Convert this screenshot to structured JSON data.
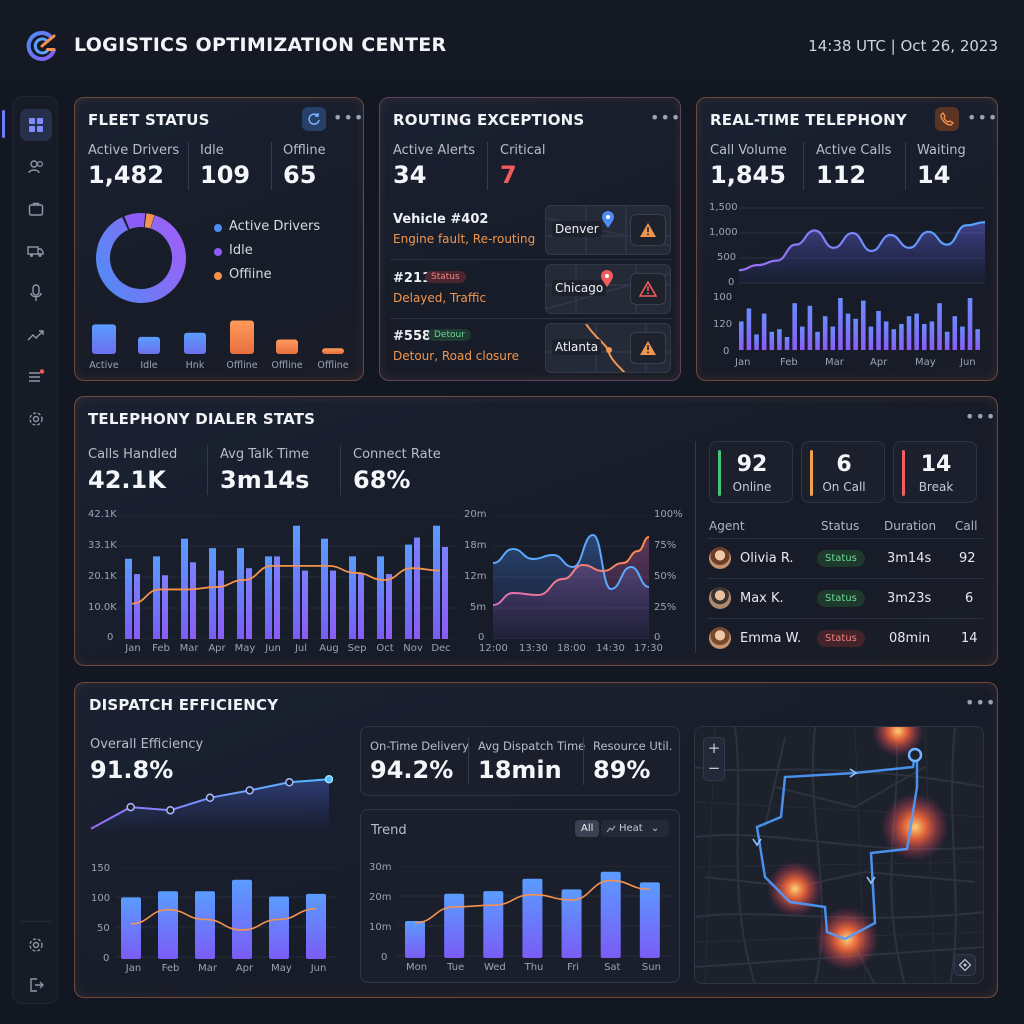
{
  "header": {
    "title": "LOGISTICS OPTIMIZATION CENTER",
    "clock": "14:38 UTC | Oct 26, 2023"
  },
  "sidebar": {
    "items": [
      {
        "icon": "dashboard-icon"
      },
      {
        "icon": "users-icon"
      },
      {
        "icon": "briefcase-icon"
      },
      {
        "icon": "truck-icon"
      },
      {
        "icon": "microphone-icon"
      },
      {
        "icon": "trend-icon"
      },
      {
        "icon": "list-icon"
      },
      {
        "icon": "settings-icon"
      }
    ],
    "bottom": [
      {
        "icon": "gear-icon"
      },
      {
        "icon": "logout-icon"
      }
    ]
  },
  "fleet": {
    "title": "FLEET STATUS",
    "metrics": [
      {
        "label": "Active Drivers",
        "value": "1,482"
      },
      {
        "label": "Idle",
        "value": "109"
      },
      {
        "label": "Offline",
        "value": "65"
      }
    ],
    "legend": [
      "Active Drivers",
      "Idle",
      "Offiine"
    ],
    "colors": {
      "active": "#4e8df5",
      "idle": "#8b5cf6",
      "offline": "#f5924e"
    },
    "bars": [
      {
        "label": "Active",
        "value": 0.78,
        "color": "#4e8df5"
      },
      {
        "label": "Idle",
        "value": 0.45,
        "color": "#6f7cf0"
      },
      {
        "label": "Hnk",
        "value": 0.56,
        "color": "#8a7cf5"
      },
      {
        "label": "Offline",
        "value": 0.88,
        "color": "#f5924e"
      },
      {
        "label": "Offline",
        "value": 0.38,
        "color": "#f5924e"
      },
      {
        "label": "Offline",
        "value": 0.15,
        "color": "#f5924e"
      }
    ]
  },
  "routing": {
    "title": "ROUTING EXCEPTIONS",
    "metrics": [
      {
        "label": "Active Alerts",
        "value": "34"
      },
      {
        "label": "Critical",
        "value": "7"
      }
    ],
    "items": [
      {
        "title": "Vehicle #402",
        "sub": "Engine fault, Re-routing",
        "city": "Denver",
        "pill": ""
      },
      {
        "title": "#211",
        "sub": "Delayed, Traffic",
        "city": "Chicago",
        "pill": "Status"
      },
      {
        "title": "#558",
        "sub": "Detour, Road closure",
        "city": "Atlanta",
        "pill": "Detour"
      }
    ]
  },
  "telephony": {
    "title": "REAL-TIME TELEPHONY",
    "metrics": [
      {
        "label": "Call Volume",
        "value": "1,845"
      },
      {
        "label": "Active Calls",
        "value": "112"
      },
      {
        "label": "Waiting",
        "value": "14"
      }
    ],
    "line_y_ticks": [
      "1,500",
      "1,000",
      "500",
      "0"
    ],
    "bar_y_ticks": [
      "100",
      "120",
      "0"
    ],
    "x_ticks": [
      "Jan",
      "Feb",
      "Mar",
      "Apr",
      "May",
      "Jun"
    ],
    "bars": [
      0.55,
      0.8,
      0.3,
      0.7,
      0.35,
      0.4,
      0.25,
      0.9,
      0.45,
      0.85,
      0.35,
      0.65,
      0.45,
      1.0,
      0.7,
      0.6,
      0.95,
      0.45,
      0.75,
      0.55,
      0.4,
      0.5,
      0.65,
      0.7,
      0.5,
      0.55,
      0.9,
      0.35,
      0.65,
      0.45,
      1.0,
      0.4
    ],
    "line": [
      0.2,
      0.28,
      0.35,
      0.6,
      0.82,
      0.55,
      0.78,
      0.5,
      0.75,
      0.55,
      0.8,
      0.6,
      0.9,
      0.95
    ]
  },
  "dialer": {
    "title": "TELEPHONY DIALER STATS",
    "metrics": [
      {
        "label": "Calls Handled",
        "value": "42.1K"
      },
      {
        "label": "Avg Talk Time",
        "value": "3m14s"
      },
      {
        "label": "Connect Rate",
        "value": "68%"
      }
    ],
    "bar_y_ticks": [
      "42.1K",
      "33.1K",
      "20.1K",
      "10.0K",
      "0"
    ],
    "months": [
      "Jan",
      "Feb",
      "Mar",
      "Apr",
      "May",
      "Jun",
      "Jul",
      "Aug",
      "Sep",
      "Oct",
      "Nov",
      "Dec"
    ],
    "bars_a": [
      0.68,
      0.7,
      0.85,
      0.77,
      0.77,
      0.7,
      0.96,
      0.85,
      0.7,
      0.7,
      0.8,
      0.96
    ],
    "bars_b": [
      0.55,
      0.54,
      0.65,
      0.58,
      0.6,
      0.7,
      0.58,
      0.58,
      0.55,
      0.55,
      0.86,
      0.78
    ],
    "trend": [
      0.3,
      0.42,
      0.42,
      0.44,
      0.5,
      0.62,
      0.62,
      0.62,
      0.56,
      0.5,
      0.6,
      0.58
    ],
    "area_y_left": [
      "20m",
      "18m",
      "12m",
      "5m",
      "0"
    ],
    "area_y_right": [
      "100%",
      "75%",
      "50%",
      "25%",
      "0"
    ],
    "area_x": [
      "12:00",
      "13:30",
      "18:00",
      "14:30",
      "17:30"
    ],
    "cards": [
      {
        "num": "92",
        "label": "Online",
        "color": "#3ec878"
      },
      {
        "num": "6",
        "label": "On Call",
        "color": "#f0a34a"
      },
      {
        "num": "14",
        "label": "Break",
        "color": "#f06060"
      }
    ],
    "table_headers": [
      "Agent",
      "Status",
      "Duration",
      "Call"
    ],
    "agents": [
      {
        "name": "Olivia R.",
        "status": "Status",
        "duration": "3m14s",
        "call": "92",
        "tone": "green"
      },
      {
        "name": "Max K.",
        "status": "Status",
        "duration": "3m23s",
        "call": "6",
        "tone": "green"
      },
      {
        "name": "Emma W.",
        "status": "Status",
        "duration": "08min",
        "call": "14",
        "tone": "red"
      }
    ]
  },
  "dispatch": {
    "title": "DISPATCH EFFICIENCY",
    "overall_label": "Overall Efficiency",
    "overall_value": "91.8%",
    "metrics": [
      {
        "label": "On-Time Delivery",
        "value": "94.2%"
      },
      {
        "label": "Avg Dispatch Time",
        "value": "18min"
      },
      {
        "label": "Resource Util.",
        "value": "89%"
      }
    ],
    "eff_line": [
      0.1,
      0.45,
      0.4,
      0.6,
      0.72,
      0.85,
      0.9
    ],
    "left_bar_y": [
      "150",
      "100",
      "50",
      "0"
    ],
    "left_x": [
      "Jan",
      "Feb",
      "Mar",
      "Apr",
      "May",
      "Jun"
    ],
    "left_bars": [
      0.7,
      0.77,
      0.77,
      0.9,
      0.71,
      0.74
    ],
    "left_trend": [
      0.4,
      0.56,
      0.45,
      0.33,
      0.45,
      0.57
    ],
    "trend_label": "Trend",
    "toggle_all": "All",
    "toggle_heat": "Heat",
    "trend_y": [
      "30m",
      "20m",
      "10m",
      "0"
    ],
    "trend_x": [
      "Mon",
      "Tue",
      "Wed",
      "Thu",
      "Fri",
      "Sat",
      "Sun"
    ],
    "trend_bars": [
      0.42,
      0.73,
      0.76,
      0.9,
      0.78,
      0.98,
      0.86
    ],
    "trend_line": [
      0.4,
      0.58,
      0.6,
      0.72,
      0.66,
      0.88,
      0.78
    ]
  }
}
